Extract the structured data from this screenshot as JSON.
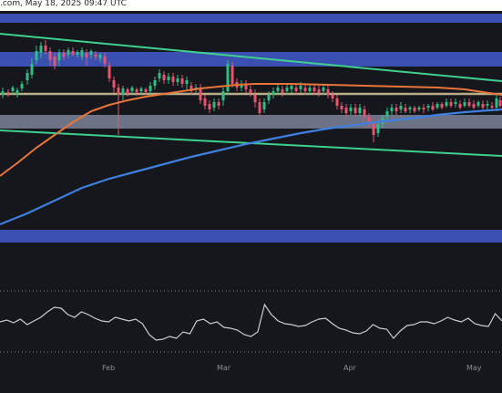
{
  "header": {
    "watermark": ".com, May 18, 2025 09:47 UTC"
  },
  "colors": {
    "background": "#15171c",
    "zone": "#3a4fb0",
    "zone_light": "#b8bfd4",
    "green_line": "#3fcf8e",
    "orange_ma": "#e8753a",
    "blue_ma": "#3f7fe0",
    "khaki_line": "#b9ad86",
    "candle_up": "#2ebd85",
    "candle_down": "#e9536e",
    "rsi_line": "#c9ccd6",
    "rsi_dots": "#7f8596"
  },
  "chart_data": {
    "type": "candlestick",
    "title": "",
    "xlabel": "",
    "ylabel": "",
    "x_ticks": [
      "Feb",
      "Mar",
      "Apr",
      "May"
    ],
    "indicators": [
      "moving average (orange)",
      "moving average (blue)",
      "descending channel (green)",
      "horizontal support/resistance zones",
      "RSI oscillator"
    ],
    "zones": [
      "top resistance zone",
      "upper resistance zone",
      "support zone",
      "lower support zone"
    ],
    "rsi": [
      47,
      49,
      46,
      50,
      44,
      48,
      52,
      58,
      63,
      62,
      55,
      52,
      58,
      55,
      51,
      48,
      47,
      52,
      50,
      48,
      50,
      45,
      33,
      27,
      28,
      31,
      29,
      36,
      34,
      48,
      50,
      45,
      47,
      41,
      40,
      38,
      33,
      31,
      36,
      66,
      55,
      48,
      45,
      44,
      42,
      43,
      47,
      50,
      51,
      45,
      40,
      38,
      35,
      34,
      37,
      44,
      40,
      39,
      29,
      37,
      43,
      44,
      47,
      47,
      45,
      48,
      52,
      49,
      47,
      51,
      45,
      43,
      42,
      56,
      48
    ]
  }
}
